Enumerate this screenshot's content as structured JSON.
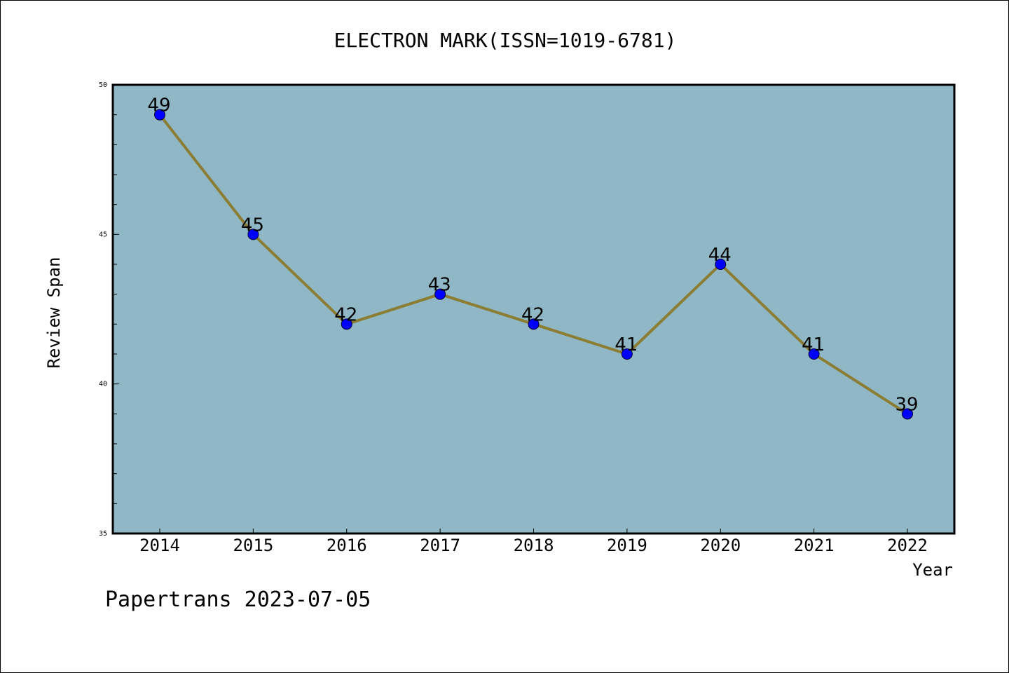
{
  "chart_data": {
    "type": "line",
    "title": "ELECTRON MARK(ISSN=1019-6781)",
    "xlabel": "Year",
    "ylabel": "Review Span",
    "categories": [
      "2014",
      "2015",
      "2016",
      "2017",
      "2018",
      "2019",
      "2020",
      "2021",
      "2022"
    ],
    "series": [
      {
        "values": [
          49,
          45,
          42,
          43,
          42,
          41,
          44,
          41,
          39
        ]
      }
    ],
    "data_labels": [
      "49",
      "45",
      "42",
      "43",
      "42",
      "41",
      "44",
      "41",
      "39"
    ],
    "ylim": [
      35,
      50
    ],
    "y_major_ticks": [
      35,
      40,
      45,
      50
    ],
    "y_tick_labels": [
      "35",
      "40",
      "45",
      "50"
    ],
    "y_minor_step": 1,
    "grid": false,
    "colors": {
      "plot_background": "#8fb7c6",
      "line": "#8b7d33",
      "marker": "#0000ff",
      "axes": "#000000"
    }
  },
  "footer": {
    "watermark": "Papertrans 2023-07-05"
  }
}
